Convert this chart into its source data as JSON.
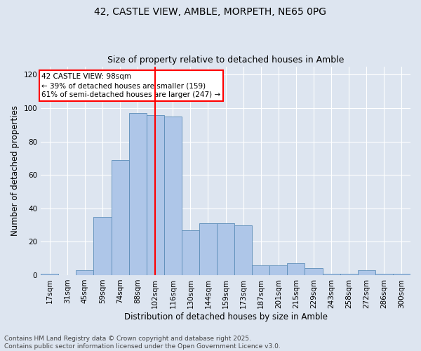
{
  "title1": "42, CASTLE VIEW, AMBLE, MORPETH, NE65 0PG",
  "title2": "Size of property relative to detached houses in Amble",
  "xlabel": "Distribution of detached houses by size in Amble",
  "ylabel": "Number of detached properties",
  "bin_labels": [
    "17sqm",
    "31sqm",
    "45sqm",
    "59sqm",
    "74sqm",
    "88sqm",
    "102sqm",
    "116sqm",
    "130sqm",
    "144sqm",
    "159sqm",
    "173sqm",
    "187sqm",
    "201sqm",
    "215sqm",
    "229sqm",
    "243sqm",
    "258sqm",
    "272sqm",
    "286sqm",
    "300sqm"
  ],
  "bar_heights": [
    1,
    0,
    3,
    35,
    69,
    97,
    96,
    95,
    27,
    31,
    31,
    30,
    6,
    6,
    7,
    4,
    1,
    1,
    3,
    1,
    1
  ],
  "bar_color": "#aec6e8",
  "bar_edge_color": "#5b8db8",
  "property_line_x": 6,
  "annotation_text_line1": "42 CASTLE VIEW: 98sqm",
  "annotation_text_line2": "← 39% of detached houses are smaller (159)",
  "annotation_text_line3": "61% of semi-detached houses are larger (247) →",
  "ylim": [
    0,
    125
  ],
  "yticks": [
    0,
    20,
    40,
    60,
    80,
    100,
    120
  ],
  "background_color": "#dde5f0",
  "plot_bg_color": "#dde5f0",
  "footer_text": "Contains HM Land Registry data © Crown copyright and database right 2025.\nContains public sector information licensed under the Open Government Licence v3.0.",
  "title1_fontsize": 10,
  "title2_fontsize": 9,
  "axis_label_fontsize": 8.5,
  "tick_fontsize": 7.5,
  "footer_fontsize": 6.5,
  "ann_fontsize": 7.5
}
